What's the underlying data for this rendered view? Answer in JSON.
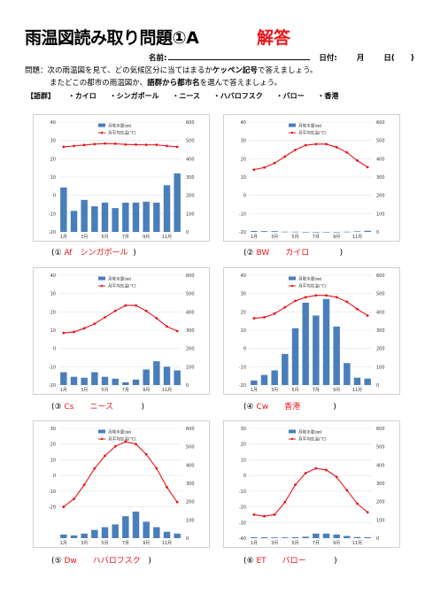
{
  "header": {
    "title": "雨温図読み取り問題①A",
    "answer_label": "解答",
    "name_label": "名前:",
    "date_label": "日付:",
    "month_label": "月",
    "day_label": "日(",
    "day_close": ")"
  },
  "question": {
    "line1_pre": "問題：次の雨温図を見て、どの気候区分に当てはまるか",
    "line1_bold": "ケッペン記号",
    "line1_post": "で答えましょう。",
    "line2_pre": "またどこの都市の雨温図か、",
    "line2_bold": "語群から都市名",
    "line2_post": "を選んで答えましょう。"
  },
  "word_group": {
    "label": "【語群】",
    "items": [
      "・カイロ",
      "・シンガポール",
      "・ニース",
      "・ハバロフスク",
      "・バロー",
      "・香港"
    ]
  },
  "legend": {
    "precip": "月降水量(㎜)",
    "temp": "月平均気温(℃)"
  },
  "colors": {
    "bar": "#4a7ebb",
    "line": "#e8141a",
    "answer": "#e8141a"
  },
  "chart_data": [
    {
      "type": "bar+line",
      "categories": [
        "1月",
        "2月",
        "3月",
        "4月",
        "5月",
        "6月",
        "7月",
        "8月",
        "9月",
        "10月",
        "11月",
        "12月"
      ],
      "x_tick_labels": [
        "1月",
        "3月",
        "5月",
        "7月",
        "9月",
        "11月"
      ],
      "y_left_ticks": [
        40,
        30,
        20,
        10,
        0,
        -10,
        -20
      ],
      "y_right_ticks": [
        600,
        500,
        400,
        300,
        200,
        100,
        0
      ],
      "ylim_temp": [
        -20,
        40
      ],
      "ylim_precip": [
        0,
        600
      ],
      "series": [
        {
          "name": "月降水量(㎜)",
          "values": [
            243,
            115,
            175,
            140,
            160,
            130,
            160,
            160,
            165,
            160,
            255,
            320
          ]
        },
        {
          "name": "月平均気温(℃)",
          "values": [
            26.5,
            27.0,
            27.5,
            28.0,
            28.3,
            28.2,
            27.8,
            27.7,
            27.6,
            27.6,
            27.0,
            26.5
          ]
        }
      ]
    },
    {
      "type": "bar+line",
      "categories": [
        "1月",
        "2月",
        "3月",
        "4月",
        "5月",
        "6月",
        "7月",
        "8月",
        "9月",
        "10月",
        "11月",
        "12月"
      ],
      "x_tick_labels": [
        "1月",
        "3月",
        "5月",
        "7月",
        "9月",
        "11月"
      ],
      "y_left_ticks": [
        40,
        30,
        20,
        10,
        0,
        -10,
        -20
      ],
      "y_right_ticks": [
        600,
        500,
        400,
        300,
        200,
        100,
        0
      ],
      "ylim_temp": [
        -20,
        40
      ],
      "ylim_precip": [
        0,
        600
      ],
      "series": [
        {
          "name": "月降水量(㎜)",
          "values": [
            5,
            4,
            4,
            1,
            1,
            0,
            0,
            0,
            0,
            1,
            3,
            6
          ]
        },
        {
          "name": "月平均気温(℃)",
          "values": [
            14.0,
            15.2,
            17.6,
            21.2,
            24.8,
            27.4,
            28.0,
            28.0,
            26.3,
            23.4,
            19.0,
            15.4
          ]
        }
      ]
    },
    {
      "type": "bar+line",
      "categories": [
        "1月",
        "2月",
        "3月",
        "4月",
        "5月",
        "6月",
        "7月",
        "8月",
        "9月",
        "10月",
        "11月",
        "12月"
      ],
      "x_tick_labels": [
        "1月",
        "3月",
        "5月",
        "7月",
        "9月",
        "11月"
      ],
      "y_left_ticks": [
        40,
        30,
        20,
        10,
        0,
        -10,
        -20
      ],
      "y_right_ticks": [
        600,
        500,
        400,
        300,
        200,
        100,
        0
      ],
      "ylim_temp": [
        -20,
        40
      ],
      "ylim_precip": [
        0,
        600
      ],
      "series": [
        {
          "name": "月降水量(㎜)",
          "values": [
            70,
            45,
            40,
            70,
            45,
            35,
            15,
            30,
            85,
            130,
            100,
            80
          ]
        },
        {
          "name": "月平均気温(℃)",
          "values": [
            8.5,
            9.0,
            11.0,
            13.5,
            17.0,
            20.5,
            23.5,
            23.5,
            20.5,
            16.5,
            12.0,
            9.5
          ]
        }
      ]
    },
    {
      "type": "bar+line",
      "categories": [
        "1月",
        "2月",
        "3月",
        "4月",
        "5月",
        "6月",
        "7月",
        "8月",
        "9月",
        "10月",
        "11月",
        "12月"
      ],
      "x_tick_labels": [
        "1月",
        "3月",
        "5月",
        "7月",
        "9月",
        "11月"
      ],
      "y_left_ticks": [
        40,
        30,
        20,
        10,
        0,
        -10,
        -20
      ],
      "y_right_ticks": [
        600,
        500,
        400,
        300,
        200,
        100,
        0
      ],
      "ylim_temp": [
        -20,
        40
      ],
      "ylim_precip": [
        0,
        600
      ],
      "series": [
        {
          "name": "月降水量(㎜)",
          "values": [
            25,
            55,
            80,
            170,
            310,
            450,
            380,
            470,
            320,
            120,
            40,
            35
          ]
        },
        {
          "name": "月平均気温(℃)",
          "values": [
            16.5,
            17.0,
            19.0,
            22.5,
            26.0,
            28.0,
            29.0,
            29.0,
            28.0,
            25.5,
            21.5,
            18.0
          ]
        }
      ]
    },
    {
      "type": "bar+line",
      "categories": [
        "1月",
        "2月",
        "3月",
        "4月",
        "5月",
        "6月",
        "7月",
        "8月",
        "9月",
        "10月",
        "11月",
        "12月"
      ],
      "x_tick_labels": [
        "1月",
        "3月",
        "5月",
        "7月",
        "9月",
        "11月"
      ],
      "y_left_ticks": [
        40,
        30,
        20,
        10,
        0,
        -10,
        -20
      ],
      "y_right_ticks": [
        600,
        500,
        400,
        300,
        200,
        100,
        0
      ],
      "ylim_temp": [
        -40,
        30
      ],
      "ylim_precip": [
        0,
        600
      ],
      "y_left_ticks_override": [
        30,
        20,
        10,
        0,
        -10,
        -20,
        -30,
        -40
      ],
      "series": [
        {
          "name": "月降水量(㎜)",
          "values": [
            20,
            15,
            25,
            45,
            60,
            75,
            120,
            145,
            90,
            60,
            35,
            25
          ]
        },
        {
          "name": "月平均気温(℃)",
          "values": [
            -20.0,
            -15.0,
            -6.0,
            4.5,
            12.5,
            18.5,
            21.5,
            20.0,
            13.5,
            4.5,
            -7.5,
            -17.0
          ]
        }
      ]
    },
    {
      "type": "bar+line",
      "categories": [
        "1月",
        "2月",
        "3月",
        "4月",
        "5月",
        "6月",
        "7月",
        "8月",
        "9月",
        "10月",
        "11月",
        "12月"
      ],
      "x_tick_labels": [
        "1月",
        "3月",
        "5月",
        "7月",
        "9月",
        "11月"
      ],
      "y_left_ticks": [
        30,
        20,
        10,
        0,
        -10,
        -20,
        -30,
        -40
      ],
      "y_right_ticks": [
        600,
        500,
        400,
        300,
        200,
        100,
        0
      ],
      "ylim_temp": [
        -40,
        30
      ],
      "ylim_precip": [
        0,
        600
      ],
      "series": [
        {
          "name": "月降水量(㎜)",
          "values": [
            5,
            5,
            4,
            4,
            5,
            8,
            25,
            25,
            20,
            12,
            6,
            5
          ]
        },
        {
          "name": "月平均気温(℃)",
          "values": [
            -25.0,
            -26.0,
            -25.0,
            -17.0,
            -6.0,
            1.5,
            4.5,
            3.5,
            -1.0,
            -9.5,
            -18.0,
            -23.5
          ]
        }
      ]
    }
  ],
  "captions": [
    {
      "num": "(①",
      "answer": "Af　シンガポール",
      "close": ")"
    },
    {
      "num": "(②",
      "answer": "BW　　カイロ",
      "close": ")"
    },
    {
      "num": "(③",
      "answer": "Cs　　ニース",
      "close": ")"
    },
    {
      "num": "(④",
      "answer": "Cw　　香港",
      "close": ")"
    },
    {
      "num": "(⑤",
      "answer": "Dw　　ハバロフスク",
      "close": ")"
    },
    {
      "num": "(⑥",
      "answer": "ET　　バロー",
      "close": ")"
    }
  ]
}
